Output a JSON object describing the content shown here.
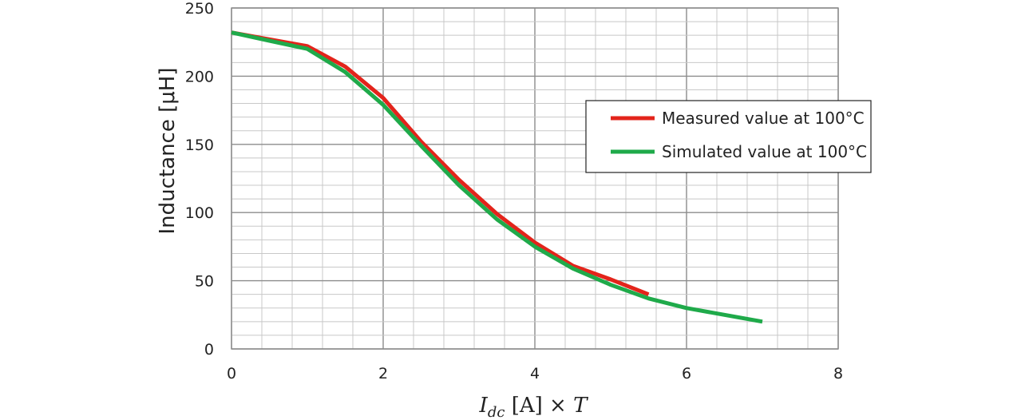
{
  "chart_data": {
    "type": "line",
    "title": "",
    "ylabel": "Inductance [μH]",
    "xlabel": {
      "italic_main": "I",
      "subscript": "dc",
      "rest": " [A] × ",
      "italic_tail": "T"
    },
    "xlim": [
      0,
      8
    ],
    "ylim": [
      0,
      250
    ],
    "x_ticks": [
      "0",
      "2",
      "4",
      "6",
      "8"
    ],
    "y_ticks": [
      "0",
      "50",
      "100",
      "150",
      "200",
      "250"
    ],
    "grid": true,
    "legend_position": "right",
    "series": [
      {
        "name": "Measured value at 100°C",
        "color": "#e3241b",
        "x": [
          0,
          0.5,
          1,
          1.5,
          2,
          2.5,
          3,
          3.5,
          4,
          4.5,
          5,
          5.5
        ],
        "y": [
          232,
          227,
          222,
          207,
          184,
          152,
          124,
          99,
          78,
          61,
          51,
          40
        ]
      },
      {
        "name": "Simulated value at 100°C",
        "color": "#1faa4a",
        "x": [
          0,
          0.5,
          1,
          1.5,
          2,
          2.5,
          3,
          3.5,
          4,
          4.5,
          5,
          5.5,
          6,
          6.5,
          7
        ],
        "y": [
          232,
          226,
          220,
          203,
          179,
          149,
          120,
          95,
          75,
          59,
          47,
          37,
          30,
          25,
          20
        ]
      }
    ]
  }
}
